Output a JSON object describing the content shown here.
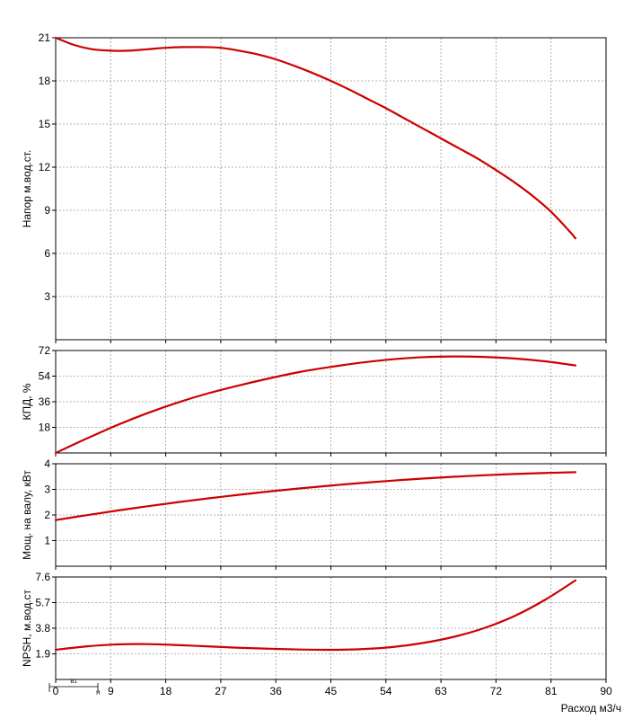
{
  "chart_data": {
    "type": "line",
    "xlabel": "Расход м3/ч",
    "x_ticks": [
      "0",
      "9",
      "18",
      "27",
      "36",
      "45",
      "54",
      "63",
      "72",
      "81",
      "90"
    ],
    "xlim": [
      0,
      90
    ],
    "grid": true,
    "line_color": "#cc0000",
    "legend_marker": {
      "label": "В1",
      "sub_label": "Я"
    },
    "panels": [
      {
        "id": "head",
        "ylabel": "Напор м.вод.ст.",
        "ylim": [
          0,
          21
        ],
        "y_ticks": [
          "3",
          "6",
          "9",
          "12",
          "15",
          "18",
          "21"
        ],
        "x": [
          0,
          3,
          6,
          9,
          12,
          15,
          18,
          21,
          24,
          27,
          30,
          33,
          36,
          39,
          42,
          45,
          48,
          51,
          54,
          57,
          60,
          63,
          66,
          69,
          72,
          75,
          78,
          81,
          84,
          85
        ],
        "y": [
          21.0,
          20.5,
          20.2,
          20.1,
          20.1,
          20.2,
          20.3,
          20.35,
          20.35,
          20.3,
          20.1,
          19.85,
          19.5,
          19.05,
          18.55,
          18.0,
          17.4,
          16.75,
          16.1,
          15.4,
          14.7,
          14.0,
          13.3,
          12.6,
          11.8,
          10.95,
          10.0,
          8.9,
          7.55,
          7.05
        ]
      },
      {
        "id": "efficiency",
        "ylabel": "КПД, %",
        "ylim": [
          0,
          72
        ],
        "y_ticks": [
          "18",
          "36",
          "54",
          "72"
        ],
        "x": [
          0,
          5,
          10,
          15,
          20,
          25,
          30,
          35,
          40,
          45,
          50,
          55,
          60,
          65,
          70,
          75,
          80,
          85
        ],
        "y": [
          0,
          10,
          19.5,
          28,
          35.5,
          42,
          47.5,
          52.5,
          57,
          60.5,
          63.5,
          65.8,
          67.3,
          67.8,
          67.5,
          66.4,
          64.4,
          61.5
        ]
      },
      {
        "id": "power",
        "ylabel": "Мощ. на валу, кВт",
        "ylim": [
          0,
          4
        ],
        "y_ticks": [
          "1",
          "2",
          "3",
          "4"
        ],
        "x": [
          0,
          5,
          10,
          15,
          20,
          25,
          30,
          35,
          40,
          45,
          50,
          55,
          60,
          65,
          70,
          75,
          80,
          85
        ],
        "y": [
          1.8,
          1.99,
          2.17,
          2.34,
          2.5,
          2.65,
          2.79,
          2.92,
          3.04,
          3.15,
          3.25,
          3.34,
          3.42,
          3.49,
          3.55,
          3.6,
          3.64,
          3.67
        ]
      },
      {
        "id": "npsh",
        "ylabel": "NPSH, м.вод.ст",
        "ylim": [
          0,
          7.6
        ],
        "y_ticks": [
          "1.9",
          "3.8",
          "5.7",
          "7.6"
        ],
        "x": [
          0,
          5,
          10,
          15,
          20,
          25,
          30,
          35,
          40,
          45,
          50,
          55,
          60,
          65,
          70,
          75,
          80,
          85
        ],
        "y": [
          2.2,
          2.45,
          2.6,
          2.62,
          2.55,
          2.45,
          2.35,
          2.28,
          2.22,
          2.2,
          2.25,
          2.4,
          2.7,
          3.15,
          3.8,
          4.7,
          5.9,
          7.35
        ]
      }
    ]
  }
}
